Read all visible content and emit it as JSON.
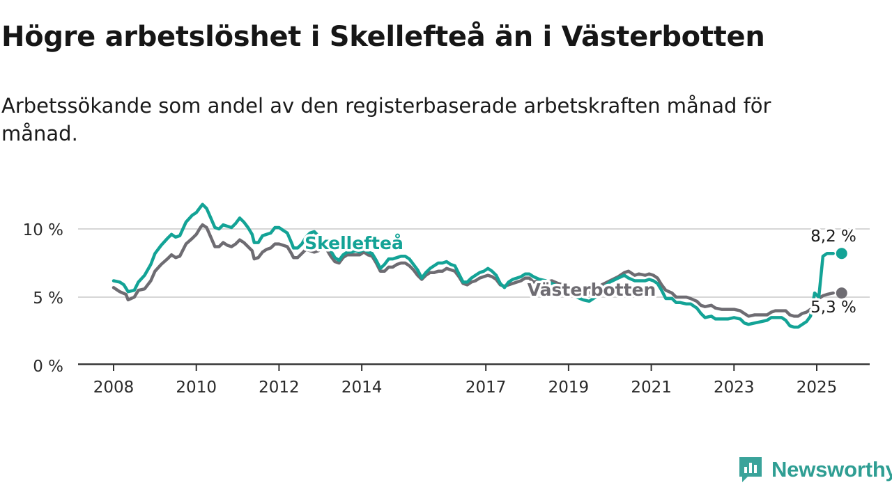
{
  "title": "Högre arbetslöshet i Skellefteå än i Västerbotten",
  "subtitle": "Arbetssökande som andel av den registerbaserade arbetskraften månad för månad.",
  "brand": {
    "name": "Newsworthy",
    "icon": "newsworthy-logo-icon",
    "color": "#3aa39a"
  },
  "chart_data": {
    "type": "line",
    "y_ticks": [
      "0 %",
      "5 %",
      "10 %"
    ],
    "y_tick_values": [
      0,
      5,
      10
    ],
    "ylim": [
      0,
      12.5
    ],
    "x_ticks": [
      "2008",
      "2010",
      "2012",
      "2014",
      "2017",
      "2019",
      "2021",
      "2023",
      "2025"
    ],
    "x_tick_values": [
      2008,
      2010,
      2012,
      2014,
      2017,
      2019,
      2021,
      2023,
      2025
    ],
    "xlim": [
      2007.2,
      2026.4
    ],
    "grid": true,
    "series": [
      {
        "name": "Västerbotten",
        "color": "#6e6c72",
        "end_label": "5,3 %",
        "points": [
          [
            2008.0,
            5.7
          ],
          [
            2008.15,
            5.4
          ],
          [
            2008.3,
            5.2
          ],
          [
            2008.35,
            4.8
          ],
          [
            2008.5,
            5.0
          ],
          [
            2008.6,
            5.5
          ],
          [
            2008.75,
            5.6
          ],
          [
            2008.9,
            6.2
          ],
          [
            2009.0,
            6.9
          ],
          [
            2009.15,
            7.4
          ],
          [
            2009.3,
            7.8
          ],
          [
            2009.4,
            8.1
          ],
          [
            2009.5,
            7.9
          ],
          [
            2009.6,
            8.0
          ],
          [
            2009.75,
            8.9
          ],
          [
            2009.9,
            9.3
          ],
          [
            2010.0,
            9.6
          ],
          [
            2010.1,
            10.1
          ],
          [
            2010.15,
            10.3
          ],
          [
            2010.25,
            10.1
          ],
          [
            2010.35,
            9.4
          ],
          [
            2010.45,
            8.7
          ],
          [
            2010.55,
            8.7
          ],
          [
            2010.65,
            9.0
          ],
          [
            2010.75,
            8.8
          ],
          [
            2010.85,
            8.7
          ],
          [
            2010.95,
            8.9
          ],
          [
            2011.05,
            9.2
          ],
          [
            2011.15,
            9.0
          ],
          [
            2011.25,
            8.7
          ],
          [
            2011.35,
            8.4
          ],
          [
            2011.4,
            7.8
          ],
          [
            2011.5,
            7.9
          ],
          [
            2011.6,
            8.3
          ],
          [
            2011.7,
            8.5
          ],
          [
            2011.8,
            8.6
          ],
          [
            2011.9,
            8.9
          ],
          [
            2012.0,
            8.9
          ],
          [
            2012.1,
            8.8
          ],
          [
            2012.2,
            8.7
          ],
          [
            2012.3,
            8.2
          ],
          [
            2012.35,
            7.9
          ],
          [
            2012.45,
            7.9
          ],
          [
            2012.55,
            8.2
          ],
          [
            2012.65,
            8.5
          ],
          [
            2012.75,
            8.4
          ],
          [
            2012.85,
            8.3
          ],
          [
            2012.95,
            8.4
          ],
          [
            2013.05,
            8.6
          ],
          [
            2013.15,
            8.5
          ],
          [
            2013.25,
            8.0
          ],
          [
            2013.35,
            7.6
          ],
          [
            2013.45,
            7.5
          ],
          [
            2013.55,
            7.9
          ],
          [
            2013.65,
            8.1
          ],
          [
            2013.75,
            8.1
          ],
          [
            2013.85,
            8.1
          ],
          [
            2013.95,
            8.1
          ],
          [
            2014.05,
            8.3
          ],
          [
            2014.15,
            8.1
          ],
          [
            2014.25,
            8.0
          ],
          [
            2014.35,
            7.5
          ],
          [
            2014.45,
            6.9
          ],
          [
            2014.55,
            6.9
          ],
          [
            2014.65,
            7.2
          ],
          [
            2014.75,
            7.2
          ],
          [
            2014.85,
            7.4
          ],
          [
            2014.95,
            7.5
          ],
          [
            2015.05,
            7.5
          ],
          [
            2015.15,
            7.3
          ],
          [
            2015.25,
            7.0
          ],
          [
            2015.35,
            6.6
          ],
          [
            2015.45,
            6.3
          ],
          [
            2015.55,
            6.6
          ],
          [
            2015.65,
            6.8
          ],
          [
            2015.75,
            6.8
          ],
          [
            2015.85,
            6.9
          ],
          [
            2015.95,
            6.9
          ],
          [
            2016.05,
            7.1
          ],
          [
            2016.15,
            7.0
          ],
          [
            2016.25,
            6.9
          ],
          [
            2016.35,
            6.5
          ],
          [
            2016.45,
            6.0
          ],
          [
            2016.55,
            5.9
          ],
          [
            2016.65,
            6.1
          ],
          [
            2016.75,
            6.2
          ],
          [
            2016.85,
            6.4
          ],
          [
            2016.95,
            6.5
          ],
          [
            2017.05,
            6.6
          ],
          [
            2017.15,
            6.5
          ],
          [
            2017.25,
            6.3
          ],
          [
            2017.35,
            5.9
          ],
          [
            2017.45,
            5.8
          ],
          [
            2017.55,
            5.9
          ],
          [
            2017.65,
            6.0
          ],
          [
            2017.75,
            6.1
          ],
          [
            2017.85,
            6.2
          ],
          [
            2017.95,
            6.4
          ],
          [
            2018.05,
            6.4
          ],
          [
            2018.15,
            6.1
          ]
        ]
      },
      {
        "name": "Skellefteå",
        "color": "#13a396",
        "end_label": "8,2 %",
        "points": [
          [
            2008.0,
            6.2
          ],
          [
            2008.15,
            6.1
          ],
          [
            2008.25,
            5.9
          ],
          [
            2008.35,
            5.4
          ],
          [
            2008.5,
            5.5
          ],
          [
            2008.6,
            6.1
          ],
          [
            2008.75,
            6.6
          ],
          [
            2008.9,
            7.4
          ],
          [
            2009.0,
            8.2
          ],
          [
            2009.15,
            8.8
          ],
          [
            2009.3,
            9.3
          ],
          [
            2009.4,
            9.6
          ],
          [
            2009.5,
            9.4
          ],
          [
            2009.6,
            9.5
          ],
          [
            2009.75,
            10.5
          ],
          [
            2009.9,
            11.0
          ],
          [
            2010.0,
            11.2
          ],
          [
            2010.1,
            11.6
          ],
          [
            2010.15,
            11.8
          ],
          [
            2010.25,
            11.5
          ],
          [
            2010.35,
            10.8
          ],
          [
            2010.45,
            10.1
          ],
          [
            2010.55,
            10.0
          ],
          [
            2010.65,
            10.3
          ],
          [
            2010.75,
            10.2
          ],
          [
            2010.85,
            10.1
          ],
          [
            2010.95,
            10.4
          ],
          [
            2011.05,
            10.8
          ],
          [
            2011.15,
            10.5
          ],
          [
            2011.25,
            10.1
          ],
          [
            2011.35,
            9.6
          ],
          [
            2011.4,
            9.0
          ],
          [
            2011.5,
            9.0
          ],
          [
            2011.6,
            9.5
          ],
          [
            2011.7,
            9.6
          ],
          [
            2011.8,
            9.7
          ],
          [
            2011.9,
            10.1
          ],
          [
            2012.0,
            10.1
          ],
          [
            2012.1,
            9.9
          ],
          [
            2012.2,
            9.7
          ],
          [
            2012.3,
            9.0
          ],
          [
            2012.35,
            8.6
          ],
          [
            2012.45,
            8.6
          ]
        ]
      }
    ],
    "callouts": [
      {
        "series": "Skellefteå",
        "text": "Skellefteå",
        "anchor_x": 2013.0,
        "anchor_y": 9.1,
        "color": "#13a396"
      },
      {
        "series": "Västerbotten",
        "text": "Västerbotten",
        "anchor_x": 2020.2,
        "anchor_y": 5.5,
        "color": "#6e6c72"
      }
    ]
  },
  "west_series_tail": {
    "vasterbotten": [
      [
        2018.15,
        6.1
      ],
      [
        2019.8,
        5.9
      ],
      [
        2020.0,
        6.2
      ],
      [
        2020.2,
        6.5
      ],
      [
        2020.35,
        6.8
      ],
      [
        2020.45,
        6.9
      ],
      [
        2020.6,
        6.6
      ],
      [
        2020.7,
        6.7
      ],
      [
        2020.85,
        6.6
      ],
      [
        2020.95,
        6.7
      ],
      [
        2021.05,
        6.6
      ],
      [
        2021.15,
        6.4
      ],
      [
        2021.25,
        5.9
      ],
      [
        2021.35,
        5.5
      ],
      [
        2021.5,
        5.3
      ],
      [
        2021.6,
        5.0
      ],
      [
        2021.7,
        5.0
      ],
      [
        2021.85,
        5.0
      ],
      [
        2021.95,
        4.9
      ],
      [
        2022.1,
        4.7
      ],
      [
        2022.2,
        4.4
      ],
      [
        2022.3,
        4.3
      ],
      [
        2022.45,
        4.4
      ],
      [
        2022.55,
        4.2
      ],
      [
        2022.7,
        4.1
      ],
      [
        2022.85,
        4.1
      ],
      [
        2023.0,
        4.1
      ],
      [
        2023.15,
        4.0
      ],
      [
        2023.25,
        3.8
      ],
      [
        2023.35,
        3.6
      ],
      [
        2023.5,
        3.7
      ],
      [
        2023.65,
        3.7
      ],
      [
        2023.8,
        3.7
      ],
      [
        2023.9,
        3.9
      ],
      [
        2024.0,
        4.0
      ],
      [
        2024.15,
        4.0
      ],
      [
        2024.25,
        4.0
      ],
      [
        2024.35,
        3.7
      ],
      [
        2024.45,
        3.6
      ],
      [
        2024.55,
        3.6
      ],
      [
        2024.65,
        3.8
      ],
      [
        2024.75,
        3.9
      ],
      [
        2024.85,
        4.1
      ],
      [
        2024.95,
        4.4
      ],
      [
        2025.05,
        4.9
      ],
      [
        2025.15,
        5.1
      ],
      [
        2025.25,
        5.2
      ],
      [
        2025.4,
        5.3
      ]
    ],
    "skelleftea": [
      [
        2018.15,
        6.5
      ],
      [
        2019.8,
        5.6
      ],
      [
        2020.0,
        6.1
      ],
      [
        2020.2,
        6.4
      ],
      [
        2020.35,
        6.6
      ],
      [
        2020.45,
        6.4
      ],
      [
        2020.6,
        6.2
      ],
      [
        2020.7,
        6.2
      ],
      [
        2020.85,
        6.2
      ],
      [
        2020.95,
        6.3
      ],
      [
        2021.05,
        6.2
      ],
      [
        2021.15,
        6.0
      ],
      [
        2021.25,
        5.5
      ],
      [
        2021.35,
        4.9
      ],
      [
        2021.5,
        4.9
      ],
      [
        2021.6,
        4.6
      ],
      [
        2021.7,
        4.6
      ],
      [
        2021.85,
        4.5
      ],
      [
        2021.95,
        4.5
      ],
      [
        2022.1,
        4.2
      ],
      [
        2022.2,
        3.8
      ],
      [
        2022.3,
        3.5
      ],
      [
        2022.45,
        3.6
      ],
      [
        2022.55,
        3.4
      ],
      [
        2022.7,
        3.4
      ],
      [
        2022.85,
        3.4
      ],
      [
        2023.0,
        3.5
      ],
      [
        2023.15,
        3.4
      ],
      [
        2023.25,
        3.1
      ],
      [
        2023.35,
        3.0
      ],
      [
        2023.5,
        3.1
      ],
      [
        2023.65,
        3.2
      ],
      [
        2023.8,
        3.3
      ],
      [
        2023.9,
        3.5
      ],
      [
        2024.0,
        3.5
      ],
      [
        2024.15,
        3.5
      ],
      [
        2024.25,
        3.3
      ],
      [
        2024.35,
        2.9
      ],
      [
        2024.45,
        2.8
      ],
      [
        2024.55,
        2.8
      ],
      [
        2024.65,
        3.0
      ],
      [
        2024.75,
        3.2
      ],
      [
        2024.85,
        3.6
      ],
      [
        2024.95,
        5.3
      ],
      [
        2025.05,
        5.0
      ],
      [
        2025.15,
        8.0
      ],
      [
        2025.25,
        8.2
      ],
      [
        2025.4,
        8.2
      ]
    ],
    "mid_vasterbotten": [
      [
        2018.15,
        6.1
      ],
      [
        2018.3,
        6.2
      ],
      [
        2018.45,
        6.1
      ],
      [
        2018.6,
        6.2
      ],
      [
        2018.75,
        6.0
      ],
      [
        2018.9,
        5.9
      ],
      [
        2019.05,
        5.7
      ],
      [
        2019.2,
        5.6
      ],
      [
        2019.35,
        5.4
      ],
      [
        2019.5,
        5.3
      ],
      [
        2019.65,
        5.5
      ],
      [
        2019.8,
        5.9
      ]
    ],
    "mid_skelleftea": [
      [
        2018.15,
        6.5
      ],
      [
        2018.3,
        6.3
      ],
      [
        2018.45,
        6.2
      ],
      [
        2018.6,
        6.0
      ],
      [
        2018.75,
        5.8
      ],
      [
        2018.9,
        5.6
      ],
      [
        2019.05,
        5.3
      ],
      [
        2019.2,
        5.0
      ],
      [
        2019.35,
        4.8
      ],
      [
        2019.5,
        4.7
      ],
      [
        2019.65,
        5.0
      ],
      [
        2019.8,
        5.6
      ]
    ],
    "mid_skel_2012": [
      [
        2012.45,
        8.6
      ],
      [
        2012.55,
        8.9
      ],
      [
        2012.65,
        9.4
      ],
      [
        2012.75,
        9.7
      ],
      [
        2012.85,
        9.8
      ],
      [
        2012.95,
        9.5
      ],
      [
        2013.05,
        9.0
      ],
      [
        2013.15,
        8.7
      ],
      [
        2013.25,
        8.4
      ],
      [
        2013.35,
        7.9
      ],
      [
        2013.45,
        7.7
      ],
      [
        2013.55,
        8.1
      ],
      [
        2013.65,
        8.3
      ],
      [
        2013.75,
        8.3
      ],
      [
        2013.85,
        8.4
      ],
      [
        2013.95,
        8.3
      ],
      [
        2014.05,
        8.5
      ],
      [
        2014.15,
        8.3
      ],
      [
        2014.25,
        8.2
      ],
      [
        2014.35,
        7.7
      ],
      [
        2014.45,
        7.1
      ],
      [
        2014.55,
        7.4
      ],
      [
        2014.65,
        7.8
      ],
      [
        2014.75,
        7.8
      ],
      [
        2014.85,
        7.9
      ],
      [
        2014.95,
        8.0
      ],
      [
        2015.05,
        8.0
      ],
      [
        2015.15,
        7.8
      ],
      [
        2015.25,
        7.4
      ],
      [
        2015.35,
        7.0
      ],
      [
        2015.45,
        6.4
      ],
      [
        2015.55,
        6.8
      ],
      [
        2015.65,
        7.1
      ],
      [
        2015.75,
        7.3
      ],
      [
        2015.85,
        7.5
      ],
      [
        2015.95,
        7.5
      ],
      [
        2016.05,
        7.6
      ],
      [
        2016.15,
        7.4
      ],
      [
        2016.25,
        7.3
      ],
      [
        2016.35,
        6.7
      ],
      [
        2016.45,
        6.1
      ],
      [
        2016.55,
        6.1
      ],
      [
        2016.65,
        6.4
      ],
      [
        2016.75,
        6.6
      ],
      [
        2016.85,
        6.8
      ],
      [
        2016.95,
        6.9
      ],
      [
        2017.05,
        7.1
      ],
      [
        2017.15,
        6.9
      ],
      [
        2017.25,
        6.6
      ],
      [
        2017.35,
        6.0
      ],
      [
        2017.45,
        5.7
      ],
      [
        2017.55,
        6.1
      ],
      [
        2017.65,
        6.3
      ],
      [
        2017.75,
        6.4
      ],
      [
        2017.85,
        6.5
      ],
      [
        2017.95,
        6.7
      ],
      [
        2018.05,
        6.7
      ],
      [
        2018.15,
        6.5
      ]
    ]
  }
}
